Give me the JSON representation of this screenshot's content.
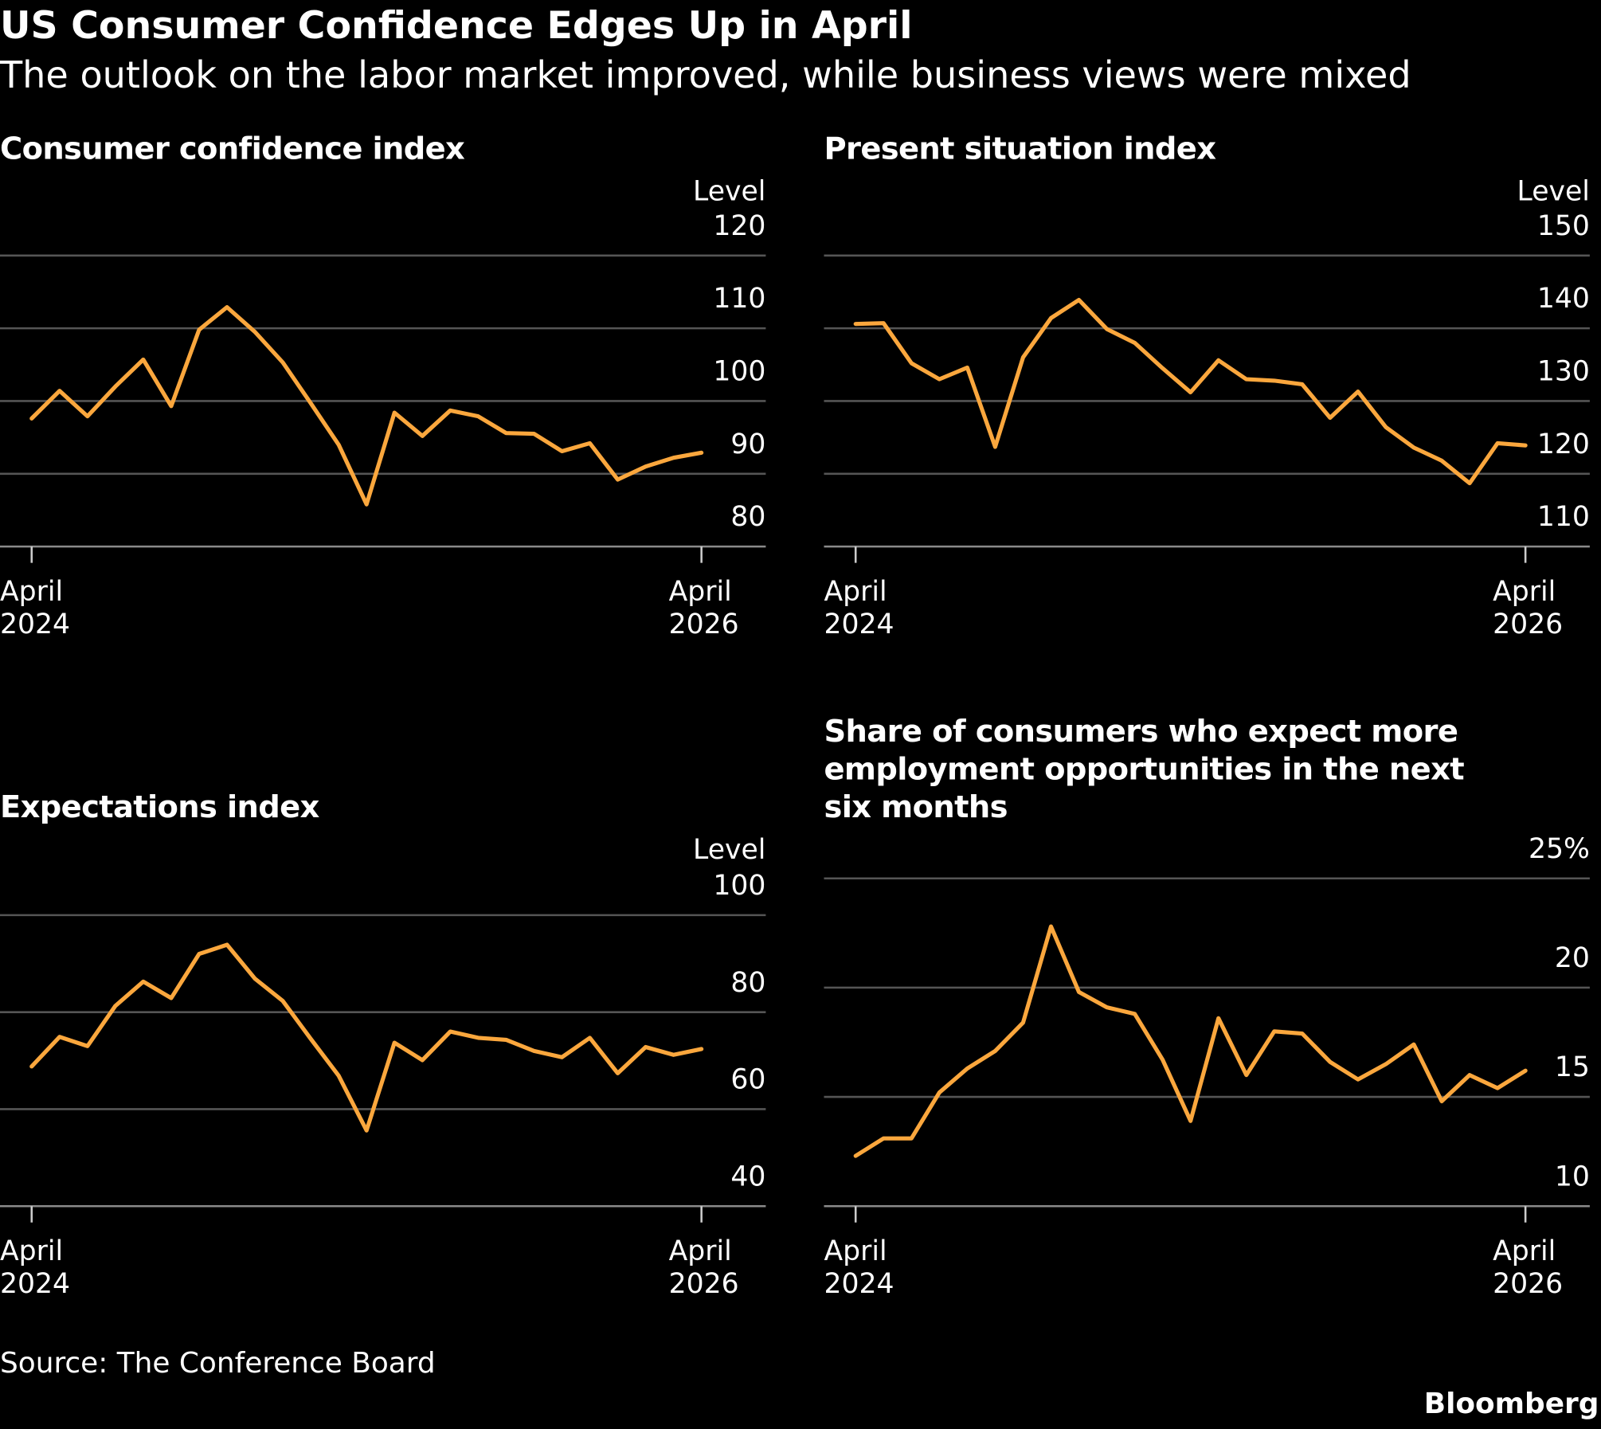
{
  "title": "US Consumer Confidence Edges Up in April",
  "subtitle": "The outlook on the labor market improved, while business views were mixed",
  "source": "Source: The Conference Board",
  "logo": "Bloomberg",
  "chart_data": [
    {
      "type": "line",
      "title": "Consumer confidence index",
      "unit": "Level",
      "color": "#fba73d",
      "grid": true,
      "categories": [
        "April 2024",
        null,
        null,
        null,
        null,
        null,
        null,
        null,
        null,
        null,
        null,
        null,
        null,
        null,
        null,
        null,
        null,
        null,
        null,
        null,
        null,
        null,
        null,
        null,
        "April 2026"
      ],
      "values": [
        97.6,
        101.4,
        97.9,
        102,
        105.7,
        99.3,
        109.8,
        112.9,
        109.5,
        105.3,
        99.7,
        94,
        85.8,
        98.4,
        95.2,
        98.7,
        97.9,
        95.6,
        95.5,
        93.1,
        94.2,
        89.2,
        91,
        92.2,
        92.9
      ],
      "ylim": [
        80,
        120
      ],
      "yticks": [
        80,
        90,
        100,
        110,
        120
      ]
    },
    {
      "type": "line",
      "title": "Present situation index",
      "unit": "Level",
      "color": "#fba73d",
      "grid": true,
      "categories": [
        "April 2024",
        null,
        null,
        null,
        null,
        null,
        null,
        null,
        null,
        null,
        null,
        null,
        null,
        null,
        null,
        null,
        null,
        null,
        null,
        null,
        null,
        null,
        null,
        null,
        "April 2026"
      ],
      "values": [
        140.6,
        140.7,
        135.2,
        133,
        134.6,
        123.7,
        136,
        141.4,
        143.9,
        139.9,
        138,
        134.5,
        131.2,
        135.6,
        133,
        132.8,
        132.3,
        127.7,
        131.3,
        126.4,
        123.6,
        121.8,
        118.7,
        124.2,
        123.9
      ],
      "ylim": [
        110,
        150
      ],
      "yticks": [
        110,
        120,
        130,
        140,
        150
      ]
    },
    {
      "type": "line",
      "title": "Expectations index",
      "unit": "Level",
      "color": "#fba73d",
      "grid": true,
      "categories": [
        "April 2024",
        null,
        null,
        null,
        null,
        null,
        null,
        null,
        null,
        null,
        null,
        null,
        null,
        null,
        null,
        null,
        null,
        null,
        null,
        null,
        null,
        null,
        null,
        null,
        "April 2026"
      ],
      "values": [
        68.8,
        74.9,
        73,
        81.3,
        86.3,
        82.9,
        92,
        93.9,
        86.9,
        82.3,
        74.5,
        66.9,
        55.6,
        73.7,
        70.1,
        76,
        74.7,
        74.3,
        72,
        70.7,
        74.7,
        67.4,
        72.8,
        71.2,
        72.4
      ],
      "ylim": [
        40,
        100
      ],
      "yticks": [
        40,
        60,
        80,
        100
      ]
    },
    {
      "type": "line",
      "title": "Share of consumers who expect more employment opportunities in the next six months",
      "color": "#fba73d",
      "grid": true,
      "categories": [
        "April 2024",
        null,
        null,
        null,
        null,
        null,
        null,
        null,
        null,
        null,
        null,
        null,
        null,
        null,
        null,
        null,
        null,
        null,
        null,
        null,
        null,
        null,
        null,
        null,
        "April 2026"
      ],
      "values": [
        12.3,
        13.1,
        13.1,
        15.2,
        16.3,
        17.1,
        18.4,
        22.8,
        19.8,
        19.1,
        18.8,
        16.7,
        13.9,
        18.6,
        16,
        18,
        17.9,
        16.6,
        15.8,
        16.5,
        17.4,
        14.8,
        16,
        15.4,
        16.2
      ],
      "ylim": [
        10,
        25
      ],
      "yticks": [
        10,
        15,
        20,
        {
          "value": 25,
          "label": "25%"
        }
      ]
    }
  ]
}
